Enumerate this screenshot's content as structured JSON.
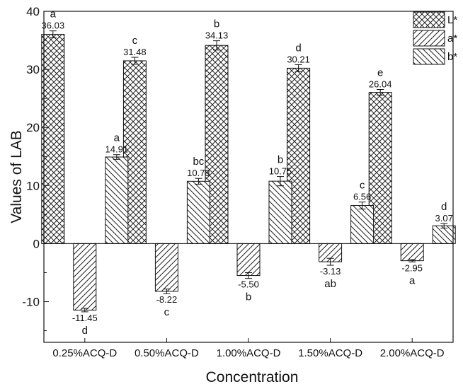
{
  "chart_data": {
    "type": "bar",
    "title": "",
    "xlabel": "Concentration",
    "ylabel": "Values of LAB",
    "ylim": [
      -17,
      40
    ],
    "yticks": [
      -10,
      0,
      10,
      20,
      30,
      40
    ],
    "categories": [
      "0.25%ACQ-D",
      "0.50%ACQ-D",
      "1.00%ACQ-D",
      "1.50%ACQ-D",
      "2.00%ACQ-D"
    ],
    "legend_position": "top-right",
    "grid": false,
    "series": [
      {
        "name": "L*",
        "pattern": "crosshatch",
        "values": [
          36.03,
          31.48,
          34.13,
          30.21,
          26.04
        ],
        "value_labels": [
          "36.03",
          "31.48",
          "34.13",
          "30.21",
          "26.04"
        ],
        "errors": [
          0.6,
          0.6,
          0.8,
          0.6,
          0.5
        ],
        "letters": [
          "a",
          "c",
          "b",
          "d",
          "e"
        ]
      },
      {
        "name": "a*",
        "pattern": "forward-diagonal",
        "values": [
          -11.45,
          -8.22,
          -5.5,
          -3.13,
          -2.95
        ],
        "value_labels": [
          "-11.45",
          "-8.22",
          "-5.50",
          "-3.13",
          "-2.95"
        ],
        "errors": [
          0.3,
          0.4,
          0.5,
          0.6,
          0.2
        ],
        "letters": [
          "d",
          "c",
          "b",
          "ab",
          "a"
        ]
      },
      {
        "name": "b*",
        "pattern": "backward-diagonal",
        "values": [
          14.91,
          10.73,
          10.75,
          6.56,
          3.07
        ],
        "value_labels": [
          "14.91",
          "10.73",
          "10.75",
          "6.56",
          "3.07"
        ],
        "errors": [
          0.4,
          0.5,
          0.8,
          0.6,
          0.4
        ],
        "letters": [
          "a",
          "bc",
          "b",
          "c",
          "d"
        ]
      }
    ]
  }
}
